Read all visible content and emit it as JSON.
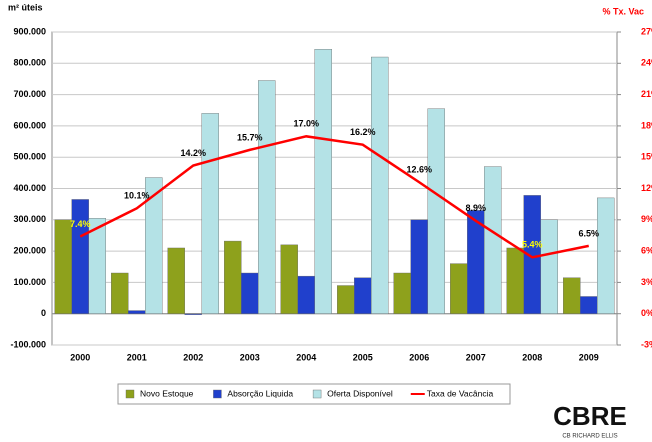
{
  "chart_data": {
    "type": "bar",
    "y_label": "m² úteis",
    "y2_label": "% Tx. Vac",
    "categories": [
      "2000",
      "2001",
      "2002",
      "2003",
      "2004",
      "2005",
      "2006",
      "2007",
      "2008",
      "2009"
    ],
    "series": [
      {
        "name": "Novo Estoque",
        "color": "#8ea11c",
        "values": [
          300000,
          130000,
          210000,
          232000,
          220000,
          90000,
          130000,
          160000,
          210000,
          115000
        ]
      },
      {
        "name": "Absorção Liquida",
        "color": "#2040cc",
        "values": [
          365000,
          10000,
          -3000,
          130000,
          120000,
          115000,
          300000,
          330000,
          378000,
          55000
        ]
      },
      {
        "name": "Oferta Disponível",
        "color": "#b4e2e6",
        "values": [
          305000,
          435000,
          640000,
          745000,
          845000,
          820000,
          655000,
          470000,
          300000,
          370000
        ]
      },
      {
        "name": "Taxa de Vacância",
        "color": "#ff0000",
        "type": "line",
        "axis": "y2",
        "values": [
          7.4,
          10.1,
          14.2,
          15.7,
          17.0,
          16.2,
          12.6,
          8.9,
          5.4,
          6.5
        ],
        "value_labels": [
          "7.4%",
          "10.1%",
          "14.2%",
          "15.7%",
          "17.0%",
          "16.2%",
          "12.6%",
          "8.9%",
          "5.4%",
          "6.5%"
        ],
        "label_colors": [
          "#ffff00",
          "#000000",
          "#000000",
          "#000000",
          "#000000",
          "#000000",
          "#000000",
          "#000000",
          "#ffff00",
          "#000000"
        ]
      }
    ],
    "ylim": [
      -100000,
      900000
    ],
    "yticks": [
      {
        "value": -100000,
        "label": "-100.000"
      },
      0,
      {
        "value": 100000,
        "label": "100.000"
      },
      {
        "value": 200000,
        "label": "200.000"
      },
      {
        "value": 300000,
        "label": "300.000"
      },
      {
        "value": 400000,
        "label": "400.000"
      },
      {
        "value": 500000,
        "label": "500.000"
      },
      {
        "value": 600000,
        "label": "600.000"
      },
      {
        "value": 700000,
        "label": "700.000"
      },
      {
        "value": 800000,
        "label": "800.000"
      },
      {
        "value": 900000,
        "label": "900.000"
      }
    ],
    "y2lim": [
      -3,
      27
    ],
    "y2ticks": [
      {
        "value": -3,
        "label": "-3%"
      },
      {
        "value": 0,
        "label": "0%"
      },
      {
        "value": 3,
        "label": "3%"
      },
      {
        "value": 6,
        "label": "6%"
      },
      {
        "value": 9,
        "label": "9%"
      },
      {
        "value": 12,
        "label": "12%"
      },
      {
        "value": 15,
        "label": "15%"
      },
      {
        "value": 18,
        "label": "18%"
      },
      {
        "value": 21,
        "label": "21%"
      },
      {
        "value": 24,
        "label": "24%"
      },
      {
        "value": 27,
        "label": "27%"
      }
    ],
    "y2_color": "#ff0000",
    "grid": true,
    "legend": "bottom",
    "logo_text": "CBRE",
    "logo_subtext": "CB RICHARD ELLIS"
  }
}
